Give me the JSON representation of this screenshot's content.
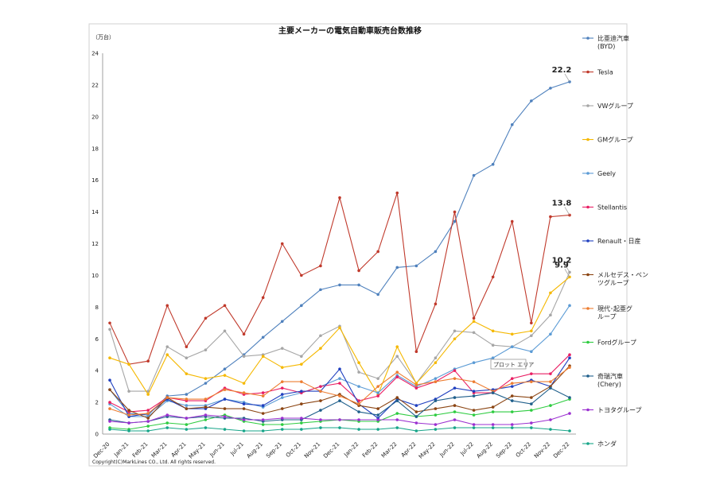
{
  "chart_data": {
    "type": "line",
    "title": "主要メーカーの電気自動車販売台数推移",
    "unit_label": "（万台）",
    "ylim": [
      0,
      24
    ],
    "yticks": [
      0,
      2,
      4,
      6,
      8,
      10,
      12,
      14,
      16,
      18,
      20,
      22,
      24
    ],
    "grid": false,
    "legend_position": "right",
    "categories": [
      "Dec-20",
      "Jan-21",
      "Feb-21",
      "Mar-21",
      "Apr-21",
      "May-21",
      "Jun-21",
      "Jul-21",
      "Aug-21",
      "Sep-21",
      "Oct-21",
      "Nov-21",
      "Dec-21",
      "Jan-22",
      "Feb-22",
      "Mar-22",
      "Apr-22",
      "May-22",
      "Jun-22",
      "Jul-22",
      "Aug-22",
      "Sep-22",
      "Oct-22",
      "Nov-22",
      "Dec-22"
    ],
    "series": [
      {
        "name": "比亜迪汽車\n(BYD)",
        "color": "#4F81BD",
        "values": [
          2.8,
          1.3,
          1.2,
          2.4,
          2.5,
          3.2,
          4.1,
          5.0,
          6.1,
          7.1,
          8.1,
          9.1,
          9.4,
          9.4,
          8.8,
          10.5,
          10.6,
          11.5,
          13.4,
          16.3,
          17.0,
          19.5,
          21.0,
          21.8,
          22.2
        ]
      },
      {
        "name": "Tesla",
        "color": "#C0392B",
        "values": [
          7.0,
          4.4,
          4.6,
          8.1,
          5.5,
          7.3,
          8.1,
          6.3,
          8.6,
          12.0,
          10.0,
          10.6,
          14.9,
          10.3,
          11.5,
          15.2,
          5.2,
          8.2,
          14.0,
          7.3,
          9.9,
          13.4,
          7.0,
          13.7,
          13.8
        ]
      },
      {
        "name": "VWグループ",
        "color": "#A6A6A6",
        "values": [
          6.6,
          2.7,
          2.7,
          5.5,
          4.8,
          5.3,
          6.5,
          4.9,
          5.0,
          5.4,
          4.9,
          6.2,
          6.8,
          3.9,
          3.5,
          4.9,
          3.2,
          4.8,
          6.5,
          6.4,
          5.6,
          5.5,
          6.2,
          7.5,
          10.2
        ]
      },
      {
        "name": "GMグループ",
        "color": "#F5B800",
        "values": [
          4.8,
          4.4,
          2.5,
          5.0,
          3.8,
          3.5,
          3.7,
          3.2,
          4.9,
          4.2,
          4.4,
          5.4,
          6.7,
          4.5,
          2.5,
          5.5,
          3.2,
          4.5,
          6.0,
          7.1,
          6.5,
          6.3,
          6.5,
          8.9,
          9.9
        ]
      },
      {
        "name": "Geely",
        "color": "#5B9BD5",
        "values": [
          1.9,
          1.1,
          1.1,
          2.1,
          1.8,
          1.8,
          2.2,
          2.0,
          1.7,
          2.3,
          2.6,
          3.0,
          3.5,
          3.0,
          2.6,
          3.7,
          3.0,
          3.5,
          4.1,
          4.5,
          4.8,
          5.5,
          5.2,
          6.3,
          8.1
        ]
      },
      {
        "name": "Stellantis",
        "color": "#E91E63",
        "values": [
          2.0,
          1.4,
          1.5,
          2.3,
          2.1,
          2.1,
          2.9,
          2.5,
          2.6,
          2.9,
          2.6,
          3.0,
          3.2,
          2.1,
          2.4,
          3.6,
          2.9,
          3.3,
          4.0,
          2.6,
          2.6,
          3.5,
          3.8,
          3.8,
          5.0
        ]
      },
      {
        "name": "Renault・日産",
        "color": "#1F3FBF",
        "values": [
          3.4,
          1.1,
          1.3,
          2.2,
          1.6,
          1.6,
          2.2,
          1.9,
          1.8,
          2.5,
          2.7,
          2.7,
          4.1,
          1.9,
          1.0,
          2.2,
          1.8,
          2.2,
          2.9,
          2.7,
          2.8,
          3.0,
          3.4,
          3.0,
          4.8
        ]
      },
      {
        "name": "メルセデス・ベン\nツグループ",
        "color": "#8B4513",
        "values": [
          2.8,
          1.5,
          1.0,
          2.3,
          1.6,
          1.7,
          1.6,
          1.6,
          1.3,
          1.6,
          1.9,
          2.1,
          2.5,
          1.8,
          1.6,
          2.3,
          1.4,
          1.6,
          1.8,
          1.5,
          1.7,
          2.4,
          2.3,
          3.0,
          4.3
        ]
      },
      {
        "name": "現代･起亜グ\nループ",
        "color": "#ED7D31",
        "values": [
          1.6,
          1.2,
          1.3,
          2.3,
          2.2,
          2.2,
          2.8,
          2.6,
          2.4,
          3.3,
          3.3,
          2.7,
          2.4,
          1.9,
          3.0,
          3.9,
          3.1,
          3.3,
          3.5,
          3.3,
          2.7,
          3.2,
          3.3,
          3.3,
          4.2
        ]
      },
      {
        "name": "Fordグループ",
        "color": "#2ECC40",
        "values": [
          0.4,
          0.3,
          0.5,
          0.7,
          0.6,
          0.9,
          1.2,
          0.8,
          0.6,
          0.6,
          0.7,
          0.8,
          0.9,
          0.8,
          0.8,
          1.3,
          1.1,
          1.2,
          1.4,
          1.2,
          1.4,
          1.4,
          1.5,
          1.8,
          2.2
        ]
      },
      {
        "name": "奇瑞汽車\n(Chery)",
        "color": "#1F5F8B",
        "values": [
          0.9,
          0.7,
          0.8,
          1.1,
          1.0,
          1.1,
          1.0,
          1.0,
          0.8,
          0.9,
          0.9,
          1.5,
          2.1,
          1.4,
          1.2,
          2.1,
          1.1,
          2.1,
          2.3,
          2.4,
          2.6,
          2.1,
          1.9,
          2.9,
          2.3
        ]
      },
      {
        "name": "トヨタグループ",
        "color": "#9B30D0",
        "values": [
          0.8,
          0.7,
          0.8,
          1.2,
          1.0,
          1.2,
          1.1,
          0.9,
          0.9,
          1.0,
          1.0,
          0.9,
          0.9,
          0.9,
          0.9,
          0.9,
          0.7,
          0.6,
          0.9,
          0.6,
          0.6,
          0.6,
          0.7,
          0.9,
          1.3
        ]
      },
      {
        "name": "ホンダ",
        "color": "#17A589",
        "values": [
          0.3,
          0.2,
          0.2,
          0.4,
          0.3,
          0.4,
          0.3,
          0.2,
          0.2,
          0.3,
          0.3,
          0.4,
          0.4,
          0.3,
          0.3,
          0.4,
          0.2,
          0.3,
          0.4,
          0.4,
          0.4,
          0.4,
          0.4,
          0.3,
          0.2
        ]
      }
    ],
    "annotations": [
      {
        "text": "22.2",
        "series": 0,
        "index": 24
      },
      {
        "text": "13.8",
        "series": 1,
        "index": 24
      },
      {
        "text": "10.2",
        "series": 2,
        "index": 24
      },
      {
        "text": "9.9",
        "series": 3,
        "index": 24
      }
    ],
    "tooltip": "プロット エリア",
    "copyright": "Copyright(C)MarkLines CO., Ltd. All rights reserved."
  }
}
